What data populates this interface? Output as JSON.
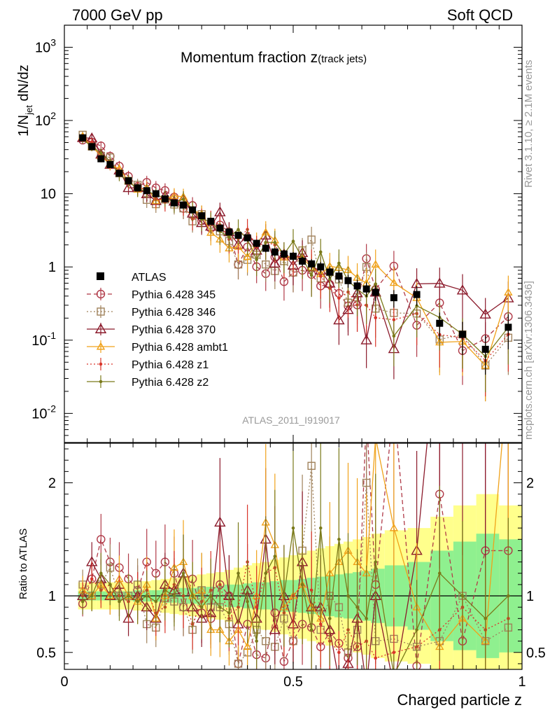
{
  "header": {
    "left": "7000 GeV pp",
    "right": "Soft QCD"
  },
  "side_labels": {
    "rivet": "Rivet 3.1.10, ≥ 2.1M events",
    "mcplots": "mcplots.cern.ch [arXiv:1306.3436]"
  },
  "chart_data": {
    "type": "scatter",
    "title_main": "Momentum fraction z",
    "title_sub": "(track jets)",
    "analysis_id": "ATLAS_2011_I919017",
    "xlabel": "Charged particle z",
    "ylabel_upper": "1/N",
    "ylabel_upper_sub": "jet",
    "ylabel_upper_rest": " dN/dz",
    "ylabel_lower": "Ratio to ATLAS",
    "xlim": [
      0,
      1
    ],
    "ylim_upper": [
      0.004,
      2000
    ],
    "yscale_upper": "log",
    "ylim_lower": [
      0.35,
      2.35
    ],
    "x_ticks": [
      "0",
      "0.5",
      "1"
    ],
    "y_ticks_upper": [
      "10^-2",
      "10^-1",
      "1",
      "10",
      "10^2",
      "10^3"
    ],
    "y_ticks_lower": [
      "0.5",
      "1",
      "2"
    ],
    "legend_position": "left-middle",
    "x": [
      0.04,
      0.06,
      0.08,
      0.1,
      0.12,
      0.14,
      0.16,
      0.18,
      0.2,
      0.22,
      0.24,
      0.26,
      0.28,
      0.3,
      0.32,
      0.34,
      0.36,
      0.38,
      0.4,
      0.42,
      0.44,
      0.46,
      0.48,
      0.5,
      0.52,
      0.54,
      0.56,
      0.58,
      0.6,
      0.62,
      0.64,
      0.66,
      0.68,
      0.72,
      0.77,
      0.82,
      0.87,
      0.92,
      0.97
    ],
    "bin_edges": [
      0.03,
      0.05,
      0.07,
      0.09,
      0.11,
      0.13,
      0.15,
      0.17,
      0.19,
      0.21,
      0.23,
      0.25,
      0.27,
      0.29,
      0.31,
      0.33,
      0.35,
      0.37,
      0.39,
      0.41,
      0.43,
      0.45,
      0.47,
      0.49,
      0.51,
      0.53,
      0.55,
      0.57,
      0.59,
      0.61,
      0.63,
      0.65,
      0.67,
      0.7,
      0.75,
      0.8,
      0.85,
      0.9,
      0.95,
      1.0
    ],
    "data": {
      "name": "ATLAS",
      "values": [
        58,
        44,
        30,
        25,
        19,
        15,
        12,
        11,
        10,
        8.5,
        7.5,
        7,
        6,
        5,
        4.2,
        3.4,
        3.0,
        2.7,
        2.5,
        2.1,
        1.8,
        1.6,
        1.5,
        1.4,
        1.2,
        1.1,
        1.0,
        0.85,
        0.75,
        0.65,
        0.55,
        0.5,
        0.45,
        0.38,
        0.42,
        0.17,
        0.12,
        0.075,
        0.15
      ],
      "band_stat": [
        0.04,
        0.04,
        0.04,
        0.04,
        0.04,
        0.04,
        0.05,
        0.05,
        0.05,
        0.06,
        0.06,
        0.07,
        0.07,
        0.08,
        0.08,
        0.09,
        0.1,
        0.1,
        0.11,
        0.12,
        0.12,
        0.13,
        0.14,
        0.14,
        0.15,
        0.16,
        0.17,
        0.18,
        0.19,
        0.2,
        0.21,
        0.22,
        0.24,
        0.27,
        0.3,
        0.4,
        0.48,
        0.55,
        0.5
      ],
      "band_total": [
        0.12,
        0.12,
        0.12,
        0.12,
        0.12,
        0.12,
        0.13,
        0.13,
        0.14,
        0.15,
        0.16,
        0.17,
        0.18,
        0.19,
        0.2,
        0.21,
        0.23,
        0.25,
        0.27,
        0.29,
        0.3,
        0.32,
        0.34,
        0.36,
        0.38,
        0.4,
        0.42,
        0.44,
        0.46,
        0.48,
        0.5,
        0.52,
        0.55,
        0.58,
        0.6,
        0.7,
        0.8,
        0.9,
        0.8
      ]
    },
    "series": [
      {
        "name": "Pythia 6.428 345",
        "color": "#b03a48",
        "marker": "circle",
        "line": "dashed",
        "ratios": [
          0.93,
          1.15,
          1.5,
          1.3,
          1.25,
          1.15,
          1.05,
          1.3,
          1.2,
          1.3,
          1.2,
          0.9,
          1.15,
          0.85,
          0.8,
          1.1,
          1.0,
          0.4,
          0.75,
          0.48,
          0.45,
          0.85,
          0.42,
          0.6,
          0.75,
          0.72,
          0.55,
          0.68,
          0.58,
          0.45,
          0.55,
          2.6,
          1.1,
          2.7,
          0.38,
          1.9,
          0.6,
          1.4,
          1.4
        ]
      },
      {
        "name": "Pythia 6.428 346",
        "color": "#a0825c",
        "marker": "square",
        "line": "dotted",
        "ratios": [
          1.1,
          1.0,
          1.1,
          1.25,
          1.0,
          1.0,
          1.1,
          0.75,
          0.72,
          0.98,
          0.95,
          0.9,
          0.7,
          1.05,
          0.9,
          0.9,
          0.75,
          0.4,
          0.5,
          0.7,
          0.6,
          0.55,
          0.8,
          0.6,
          1.4,
          2.15,
          0.7,
          1.0,
          0.9,
          0.5,
          0.7,
          2.0,
          0.6,
          0.62,
          0.55,
          0.6,
          1.0,
          0.6,
          0.72
        ]
      },
      {
        "name": "Pythia 6.428 370",
        "color": "#8b1a2b",
        "marker": "triangle",
        "line": "solid",
        "ratios": [
          1.0,
          1.3,
          1.15,
          1.0,
          1.1,
          0.8,
          1.0,
          0.9,
          0.8,
          1.1,
          1.05,
          1.2,
          0.9,
          0.8,
          0.85,
          1.65,
          1.0,
          0.75,
          1.05,
          0.8,
          1.5,
          0.7,
          1.0,
          0.75,
          1.3,
          0.9,
          0.9,
          0.7,
          0.25,
          0.4,
          0.8,
          0.2,
          1.0,
          0.2,
          1.4,
          3.5,
          4.0,
          3.0,
          2.5
        ]
      },
      {
        "name": "Pythia 6.428 ambt1",
        "color": "#f0a21a",
        "marker": "triangle",
        "line": "solid",
        "ratios": [
          1.05,
          1.0,
          1.1,
          1.0,
          1.15,
          1.0,
          0.95,
          1.1,
          0.8,
          1.0,
          1.25,
          1.3,
          1.0,
          1.05,
          0.7,
          0.7,
          0.6,
          0.7,
          0.55,
          1.0,
          1.65,
          1.45,
          0.9,
          1.0,
          1.1,
          0.9,
          0.8,
          1.2,
          1.3,
          1.4,
          1.3,
          1.2,
          2.4,
          1.6,
          0.9,
          0.55,
          0.8,
          0.6,
          3.0
        ]
      },
      {
        "name": "Pythia 6.428 z1",
        "color": "#d9352a",
        "marker": "dot",
        "line": "dotted",
        "ratios": [
          1.0,
          1.15,
          1.05,
          1.1,
          1.0,
          0.95,
          1.0,
          1.05,
          0.85,
          0.9,
          1.1,
          1.0,
          0.75,
          0.95,
          1.05,
          1.1,
          0.8,
          0.9,
          1.3,
          0.9,
          1.2,
          1.25,
          0.85,
          1.0,
          1.1,
          1.05,
          0.75,
          0.6,
          0.5,
          0.7,
          0.55,
          0.6,
          0.45,
          0.5,
          0.55,
          0.7,
          0.9,
          0.7,
          0.8
        ]
      },
      {
        "name": "Pythia 6.428 z2",
        "color": "#7a7a1a",
        "marker": "dot",
        "line": "solid",
        "ratios": [
          0.95,
          1.0,
          1.2,
          1.1,
          0.95,
          1.0,
          0.95,
          1.0,
          0.95,
          1.05,
          1.0,
          1.2,
          1.0,
          0.9,
          1.0,
          0.9,
          0.85,
          1.2,
          0.95,
          0.6,
          1.2,
          1.35,
          1.0,
          1.6,
          1.1,
          0.7,
          1.6,
          0.8,
          1.5,
          1.0,
          0.9,
          0.8,
          1.3,
          0.3,
          0.7,
          1.2,
          1.0,
          0.8,
          1.0
        ]
      }
    ]
  }
}
